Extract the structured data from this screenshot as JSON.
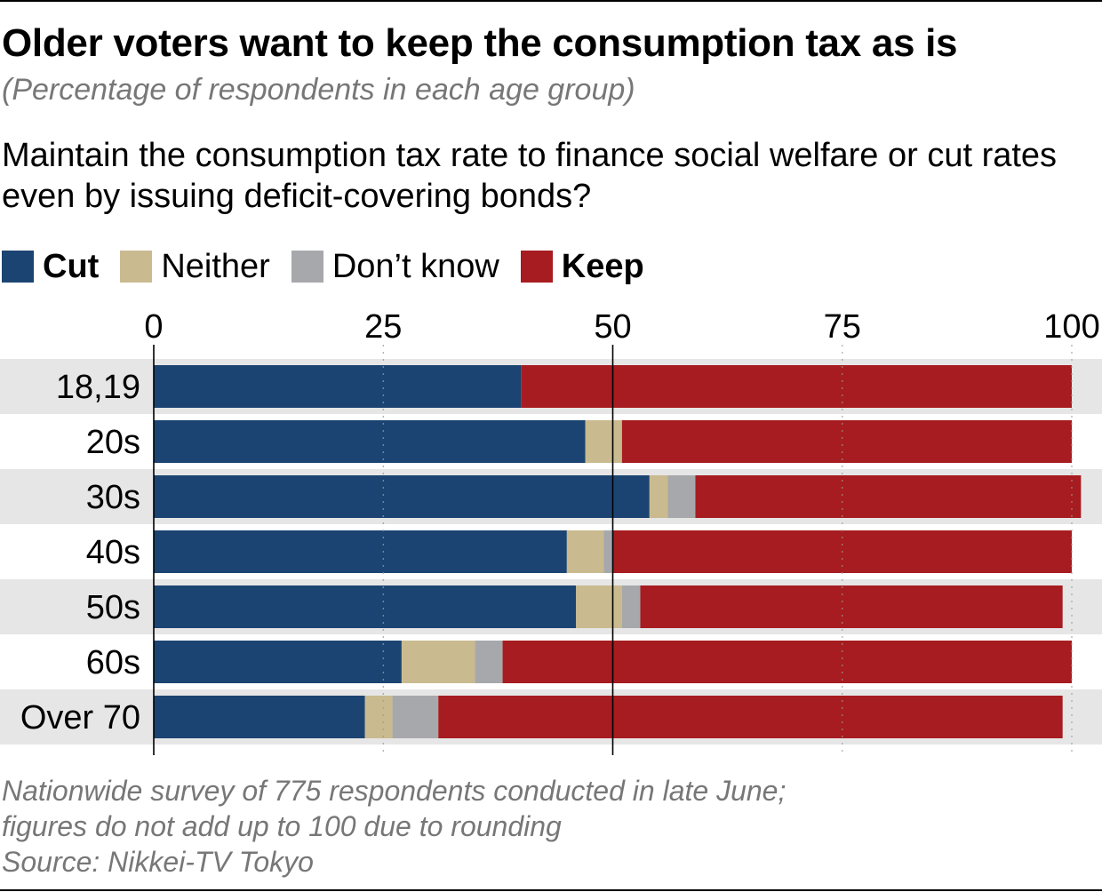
{
  "title": "Older voters want to keep the consumption tax as is",
  "subtitle": "(Percentage of respondents in each age group)",
  "question": "Maintain the consumption tax rate to finance social welfare or cut rates even by issuing deficit-covering bonds?",
  "legend": [
    {
      "label": "Cut",
      "color": "#1b4472",
      "bold": true
    },
    {
      "label": "Neither",
      "color": "#c9ba8f",
      "bold": false
    },
    {
      "label": "Don’t know",
      "color": "#a7a8ab",
      "bold": false
    },
    {
      "label": "Keep",
      "color": "#a71c20",
      "bold": true
    }
  ],
  "footnote": {
    "line1": "Nationwide survey of 775 respondents conducted in late June;",
    "line2": "figures do not add up to 100 due to rounding",
    "source": "Source: Nikkei-TV Tokyo"
  },
  "chart_data": {
    "type": "bar",
    "orientation": "horizontal",
    "stacked": true,
    "title": "Older voters want to keep the consumption tax as is",
    "subtitle": "(Percentage of respondents in each age group)",
    "xlabel": "",
    "ylabel": "",
    "xlim": [
      0,
      100
    ],
    "xticks": [
      0,
      25,
      50,
      75,
      100
    ],
    "xtick_labels": [
      "0",
      "25",
      "50",
      "75",
      "100"
    ],
    "grid": "dotted vertical at 25, 75, 100; solid at 0 and 50",
    "legend_position": "top-left",
    "categories": [
      "18,19",
      "20s",
      "30s",
      "40s",
      "50s",
      "60s",
      "Over 70"
    ],
    "series": [
      {
        "name": "Cut",
        "color": "#1b4472",
        "values": [
          40,
          47,
          54,
          45,
          46,
          27,
          23
        ]
      },
      {
        "name": "Neither",
        "color": "#c9ba8f",
        "values": [
          0,
          4,
          2,
          4,
          5,
          8,
          3
        ]
      },
      {
        "name": "Don’t know",
        "color": "#a7a8ab",
        "values": [
          0,
          0,
          3,
          1,
          2,
          3,
          5
        ]
      },
      {
        "name": "Keep",
        "color": "#a71c20",
        "values": [
          60,
          49,
          42,
          50,
          46,
          62,
          68
        ]
      }
    ]
  }
}
